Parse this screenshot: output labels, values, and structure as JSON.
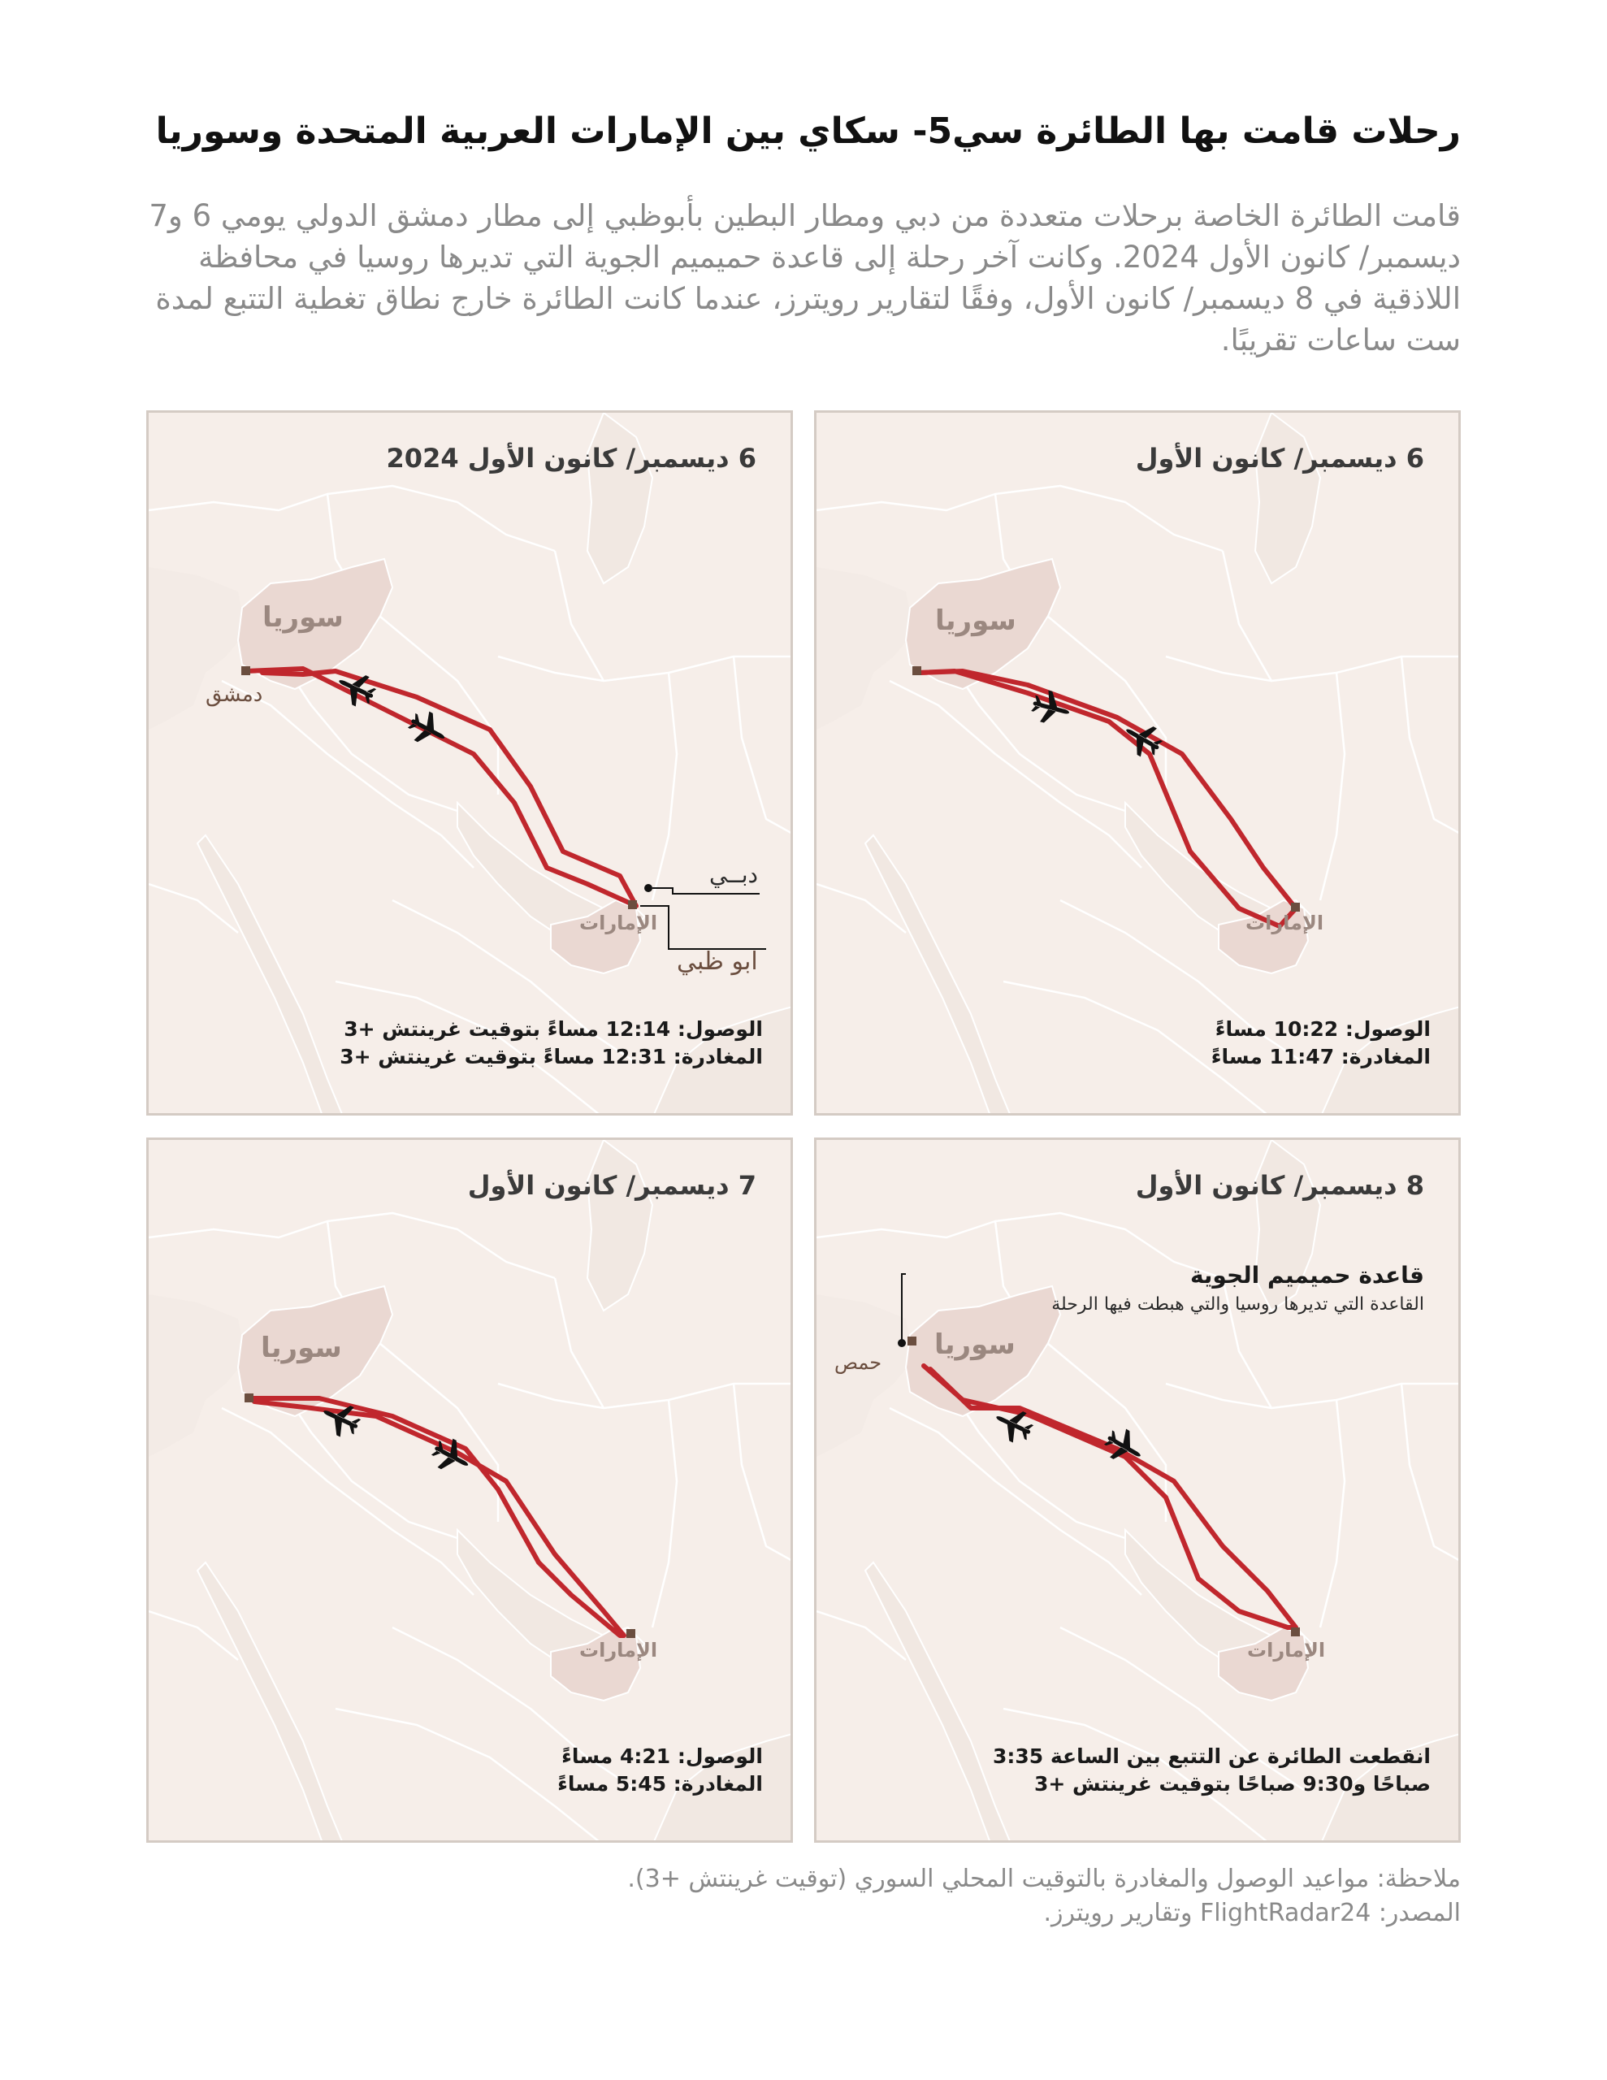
{
  "title": "رحلات قامت بها الطائرة سي5- سكاي بين الإمارات العربية المتحدة وسوريا",
  "intro": "قامت الطائرة الخاصة برحلات متعددة من دبي ومطار البطين بأبوظبي إلى مطار دمشق الدولي يومي 6 و7 ديسمبر/ كانون الأول 2024. وكانت آخر رحلة إلى قاعدة حميميم الجوية التي تديرها روسيا في محافظة اللاذقية في 8 ديسمبر/ كانون الأول، وفقًا لتقارير رويترز، عندما كانت الطائرة خارج نطاق تغطية التتبع لمدة ست ساعات تقريبًا.",
  "labels": {
    "syria": "سوريا",
    "uae": "الإمارات",
    "damascus": "دمشق",
    "dubai": "دبــي",
    "abu_dhabi": "ابو ظبي",
    "homs": "حمص"
  },
  "panels": [
    {
      "id": "panel-1",
      "date": "6 ديسمبر/ كانون الأول",
      "arrival": "الوصول: 10:22 مساءً",
      "departure": "المغادرة: 11:47 مساءً"
    },
    {
      "id": "panel-2",
      "date": "6 ديسمبر/ كانون الأول 2024",
      "arrival": "الوصول: 12:14 مساءً بتوقيت غرينتش +3",
      "departure": "المغادرة: 12:31 مساءً بتوقيت غرينتش +3"
    },
    {
      "id": "panel-3",
      "date": "8 ديسمبر/ كانون الأول",
      "annotation_title": "قاعدة حميميم الجوية",
      "annotation_text": "القاعدة التي تديرها روسيا والتي هبطت فيها الرحلة",
      "note_line1": "انقطعت الطائرة عن التتبع بين الساعة 3:35",
      "note_line2": "صباحًا و9:30 صباحًا بتوقيت غرينتش +3"
    },
    {
      "id": "panel-4",
      "date": "7 ديسمبر/ كانون الأول",
      "arrival": "الوصول: 4:21 مساءً",
      "departure": "المغادرة: 5:45 مساءً"
    }
  ],
  "footer": {
    "note": "ملاحظة: مواعيد الوصول والمغادرة بالتوقيت المحلي السوري (توقيت غرينتش +3).",
    "source": "المصدر: FlightRadar24 وتقارير رويترز."
  },
  "colors": {
    "map_bg": "#f6eee9",
    "land_border": "#ffffff",
    "highlight_country": "#ead8d2",
    "route": "#c0272d",
    "aircraft": "#111111"
  }
}
